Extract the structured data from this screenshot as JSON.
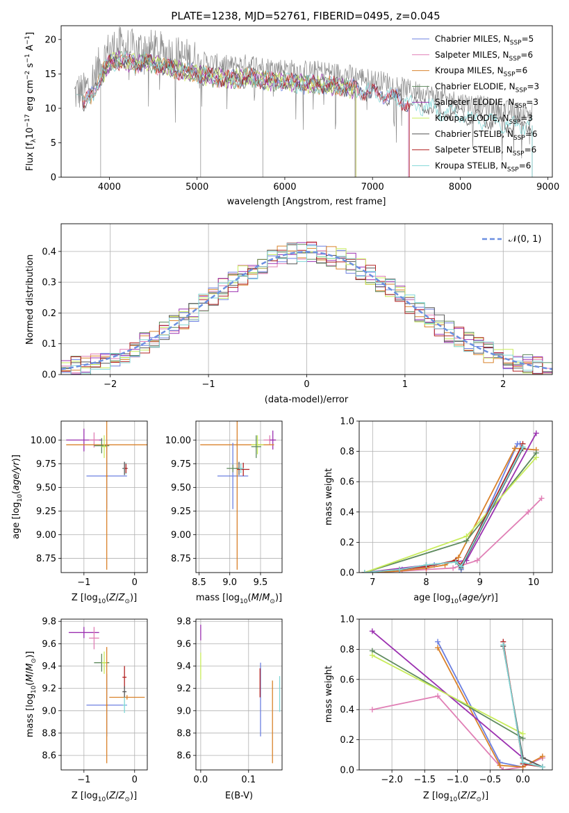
{
  "colors": {
    "chabrier_miles": "#6b7fe0",
    "salpeter_miles": "#e07fb5",
    "kroupa_miles": "#d9822b",
    "chabrier_elodie": "#5e8a5e",
    "salpeter_elodie": "#9b30b0",
    "kroupa_elodie": "#c8ec5a",
    "chabrier_stelib": "#555555",
    "salpeter_stelib": "#b22222",
    "kroupa_stelib": "#7fd6d6",
    "normal": "#6b8fe0",
    "grid": "#b0b0b0"
  },
  "chart_data": [
    {
      "id": "spectrum",
      "type": "line",
      "title": "PLATE=1238, MJD=52761, FIBERID=0495, z=0.045",
      "xlabel": "wavelength [Angstrom, rest frame]",
      "ylabel": "Flux [f_λ10^-17 erg cm^-2 s^-1 A^-1]",
      "xlim": [
        3450,
        9050
      ],
      "ylim": [
        0,
        22
      ],
      "xticks": [
        4000,
        5000,
        6000,
        7000,
        8000,
        9000
      ],
      "yticks": [
        0,
        5,
        10,
        15,
        20
      ],
      "grid": false,
      "legend_position": "top-right",
      "data_envelope": {
        "x": [
          3600,
          3650,
          3700,
          3800,
          3900,
          4000,
          4100,
          4200,
          4300,
          4400,
          4500,
          4600,
          4800,
          5000,
          5200,
          5400,
          5600,
          5800,
          6000,
          6200,
          6400,
          6600,
          6800,
          7000,
          7200,
          7400,
          7600,
          7800,
          8000,
          8200,
          8400,
          8600,
          8800
        ],
        "y": [
          12.0,
          12.5,
          12.2,
          14.0,
          16.5,
          18.5,
          19.0,
          18.8,
          18.5,
          18.8,
          18.5,
          18.2,
          17.5,
          17.0,
          16.5,
          16.2,
          16.5,
          16.0,
          15.8,
          15.5,
          15.5,
          15.2,
          14.8,
          14.2,
          13.8,
          12.8,
          12.2,
          11.5,
          11.0,
          10.5,
          10.0,
          9.6,
          9.5
        ]
      },
      "legend": [
        {
          "label": "Chabrier MILES, N",
          "sub": "SSP",
          "eq": "=5",
          "color_key": "chabrier_miles"
        },
        {
          "label": "Salpeter MILES, N",
          "sub": "SSP",
          "eq": "=6",
          "color_key": "salpeter_miles"
        },
        {
          "label": "Kroupa MILES, N",
          "sub": "SSP",
          "eq": "=6",
          "color_key": "kroupa_miles"
        },
        {
          "label": "Chabrier ELODIE, N",
          "sub": "SSP",
          "eq": "=3",
          "color_key": "chabrier_elodie"
        },
        {
          "label": "Salpeter ELODIE, N",
          "sub": "SSP",
          "eq": "=3",
          "color_key": "salpeter_elodie"
        },
        {
          "label": "Kroupa ELODIE, N",
          "sub": "SSP",
          "eq": "=3",
          "color_key": "kroupa_elodie"
        },
        {
          "label": "Chabrier STELIB, N",
          "sub": "SSP",
          "eq": "=6",
          "color_key": "chabrier_stelib"
        },
        {
          "label": "Salpeter STELIB, N",
          "sub": "SSP",
          "eq": "=6",
          "color_key": "salpeter_stelib"
        },
        {
          "label": "Kroupa STELIB, N",
          "sub": "SSP",
          "eq": "=6",
          "color_key": "kroupa_stelib"
        }
      ]
    },
    {
      "id": "residuals",
      "type": "histogram",
      "title": "",
      "xlabel": "(data-model)/error",
      "ylabel": "Normed distribution",
      "xlim": [
        -2.5,
        2.5
      ],
      "ylim": [
        0,
        0.49
      ],
      "xticks": [
        -2,
        -1,
        0,
        1,
        2
      ],
      "yticks": [
        0.0,
        0.1,
        0.2,
        0.3,
        0.4
      ],
      "grid": true,
      "bin_width": 0.1,
      "legend": [
        {
          "label": "N(0, 1)",
          "style": "dashed",
          "color_key": "normal"
        }
      ],
      "legend_position": "top-right"
    },
    {
      "id": "age_vs_Z",
      "type": "errorbar",
      "xlabel": "Z [log10(Z/Z⊙)]",
      "ylabel": "age  [log10(age/yr)]",
      "xlim": [
        -1.45,
        0.25
      ],
      "ylim": [
        8.6,
        10.2
      ],
      "xticks": [
        -1,
        0
      ],
      "yticks": [
        8.75,
        9.0,
        9.25,
        9.5,
        9.75,
        10.0
      ],
      "grid": true,
      "points": [
        {
          "c": "salpeter_elodie",
          "x": -1.0,
          "xe": 0.35,
          "y": 10.0,
          "ye": 0.12
        },
        {
          "c": "salpeter_miles",
          "x": -0.8,
          "xe": 0.1,
          "y": 10.0,
          "ye": 0.08
        },
        {
          "c": "kroupa_miles",
          "x": -0.55,
          "xe": 0.8,
          "y": 9.95,
          "ye": 0.05
        },
        {
          "c": "chabrier_elodie",
          "x": -0.65,
          "xe": 0.15,
          "y": 9.94,
          "ye": 0.08
        },
        {
          "c": "kroupa_elodie",
          "x": -0.6,
          "xe": 0.05,
          "y": 9.93,
          "ye": 0.12
        },
        {
          "c": "chabrier_miles",
          "x": -0.55,
          "xe": 0.4,
          "y": 9.62,
          "ye": 0.35
        },
        {
          "c": "kroupa_miles",
          "x": -0.55,
          "xe": 0.02,
          "y": 9.62,
          "ye": 0.99
        },
        {
          "c": "chabrier_stelib",
          "x": -0.2,
          "xe": 0.04,
          "y": 9.7,
          "ye": 0.07
        },
        {
          "c": "kroupa_stelib",
          "x": -0.17,
          "xe": 0.04,
          "y": 9.7,
          "ye": 0.06
        },
        {
          "c": "salpeter_stelib",
          "x": -0.17,
          "xe": 0.03,
          "y": 9.7,
          "ye": 0.05
        }
      ]
    },
    {
      "id": "age_vs_mass",
      "type": "errorbar",
      "xlabel": "mass [log10(M/M⊙)]",
      "ylabel": "",
      "xlim": [
        8.45,
        9.85
      ],
      "ylim": [
        8.6,
        10.2
      ],
      "xticks": [
        8.5,
        9.0,
        9.5
      ],
      "yticks": [
        8.75,
        9.0,
        9.25,
        9.5,
        9.75,
        10.0
      ],
      "grid": true,
      "points": [
        {
          "c": "salpeter_miles",
          "x": 9.65,
          "xe": 0.1,
          "y": 10.0,
          "ye": 0.05
        },
        {
          "c": "salpeter_elodie",
          "x": 9.7,
          "xe": 0.05,
          "y": 10.0,
          "ye": 0.1
        },
        {
          "c": "kroupa_miles",
          "x": 9.12,
          "xe": 0.6,
          "y": 9.95,
          "ye": 0.02
        },
        {
          "c": "kroupa_elodie",
          "x": 9.45,
          "xe": 0.1,
          "y": 9.95,
          "ye": 0.1
        },
        {
          "c": "chabrier_elodie",
          "x": 9.43,
          "xe": 0.08,
          "y": 9.93,
          "ye": 0.12
        },
        {
          "c": "chabrier_miles",
          "x": 9.05,
          "xe": 0.25,
          "y": 9.62,
          "ye": 0.35
        },
        {
          "c": "kroupa_miles",
          "x": 9.12,
          "xe": 0.01,
          "y": 9.62,
          "ye": 0.99
        },
        {
          "c": "chabrier_stelib",
          "x": 9.15,
          "xe": 0.05,
          "y": 9.7,
          "ye": 0.07
        },
        {
          "c": "salpeter_stelib",
          "x": 9.22,
          "xe": 0.1,
          "y": 9.69,
          "ye": 0.07
        },
        {
          "c": "kroupa_stelib",
          "x": 9.18,
          "xe": 0.05,
          "y": 9.7,
          "ye": 0.05
        },
        {
          "c": "chabrier_elodie",
          "x": 9.05,
          "xe": 0.1,
          "y": 9.7,
          "ye": 0.04
        }
      ]
    },
    {
      "id": "mass_weight_vs_age",
      "type": "line",
      "xlabel": "age  [log10(age/yr)]",
      "ylabel": "mass weight",
      "xlim": [
        6.75,
        10.35
      ],
      "ylim": [
        0,
        1.0
      ],
      "xticks": [
        7,
        8,
        9,
        10
      ],
      "yticks": [
        0.0,
        0.2,
        0.4,
        0.6,
        0.8,
        1.0
      ],
      "grid": true,
      "series": [
        {
          "c": "chabrier_miles",
          "x": [
            6.85,
            7.55,
            8.15,
            8.55,
            8.65,
            9.7,
            9.75
          ],
          "y": [
            0.0,
            0.02,
            0.05,
            0.08,
            0.02,
            0.85,
            0.85
          ]
        },
        {
          "c": "salpeter_miles",
          "x": [
            6.85,
            7.55,
            8.0,
            8.5,
            8.95,
            9.9,
            10.15
          ],
          "y": [
            0.0,
            0.01,
            0.02,
            0.03,
            0.08,
            0.4,
            0.49
          ]
        },
        {
          "c": "kroupa_miles",
          "x": [
            6.85,
            7.5,
            8.0,
            8.35,
            8.6,
            9.65,
            10.05
          ],
          "y": [
            0.0,
            0.01,
            0.03,
            0.05,
            0.1,
            0.82,
            0.81
          ]
        },
        {
          "c": "chabrier_elodie",
          "x": [
            6.85,
            8.75,
            10.05
          ],
          "y": [
            0.0,
            0.21,
            0.79
          ]
        },
        {
          "c": "salpeter_elodie",
          "x": [
            6.85,
            8.75,
            10.05
          ],
          "y": [
            0.0,
            0.08,
            0.92
          ]
        },
        {
          "c": "kroupa_elodie",
          "x": [
            6.85,
            8.75,
            10.05
          ],
          "y": [
            0.0,
            0.24,
            0.76
          ]
        },
        {
          "c": "chabrier_stelib",
          "x": [
            6.85,
            7.5,
            8.0,
            8.55,
            8.65,
            9.8
          ],
          "y": [
            0.0,
            0.02,
            0.05,
            0.07,
            0.03,
            0.82
          ]
        },
        {
          "c": "salpeter_stelib",
          "x": [
            6.85,
            7.5,
            8.0,
            8.55,
            8.65,
            9.8
          ],
          "y": [
            0.0,
            0.02,
            0.04,
            0.08,
            0.05,
            0.85
          ]
        },
        {
          "c": "kroupa_stelib",
          "x": [
            6.85,
            7.5,
            8.0,
            8.55,
            8.65,
            9.8
          ],
          "y": [
            0.0,
            0.02,
            0.05,
            0.07,
            0.04,
            0.83
          ]
        }
      ]
    },
    {
      "id": "mass_vs_Z",
      "type": "errorbar",
      "xlabel": "Z [log10(Z/Z⊙)]",
      "ylabel": "mass [log10(M/M⊙)]",
      "xlim": [
        -1.45,
        0.25
      ],
      "ylim": [
        8.47,
        9.82
      ],
      "xticks": [
        -1,
        0
      ],
      "yticks": [
        8.6,
        8.8,
        9.0,
        9.2,
        9.4,
        9.6,
        9.8
      ],
      "grid": true,
      "points": [
        {
          "c": "salpeter_elodie",
          "x": -1.0,
          "xe": 0.3,
          "y": 9.7,
          "ye": 0.05
        },
        {
          "c": "salpeter_miles",
          "x": -0.8,
          "xe": 0.1,
          "y": 9.65,
          "ye": 0.1
        },
        {
          "c": "chabrier_elodie",
          "x": -0.65,
          "xe": 0.15,
          "y": 9.43,
          "ye": 0.08
        },
        {
          "c": "kroupa_elodie",
          "x": -0.6,
          "xe": 0.05,
          "y": 9.43,
          "ye": 0.1
        },
        {
          "c": "chabrier_miles",
          "x": -0.55,
          "xe": 0.4,
          "y": 9.05,
          "ye": 0.28
        },
        {
          "c": "kroupa_miles",
          "x": -0.55,
          "xe": 0.02,
          "y": 9.05,
          "ye": 0.52
        },
        {
          "c": "kroupa_miles",
          "x": -0.15,
          "xe": 0.35,
          "y": 9.12,
          "ye": 0.02
        },
        {
          "c": "salpeter_stelib",
          "x": -0.2,
          "xe": 0.04,
          "y": 9.3,
          "ye": 0.1
        },
        {
          "c": "chabrier_stelib",
          "x": -0.2,
          "xe": 0.04,
          "y": 9.17,
          "ye": 0.05
        },
        {
          "c": "kroupa_stelib",
          "x": -0.2,
          "xe": 0.03,
          "y": 9.05,
          "ye": 0.07
        }
      ]
    },
    {
      "id": "mass_vs_ebv",
      "type": "errorbar",
      "xlabel": "E(B-V)",
      "ylabel": "",
      "xlim": [
        -0.01,
        0.17
      ],
      "ylim": [
        8.47,
        9.82
      ],
      "xticks": [
        0.0,
        0.1
      ],
      "yticks": [
        8.6,
        8.8,
        9.0,
        9.2,
        9.4,
        9.6,
        9.8
      ],
      "grid": true,
      "points": [
        {
          "c": "salpeter_elodie",
          "x": 0.0,
          "xe": 0.0,
          "y": 9.7,
          "ye": 0.07
        },
        {
          "c": "kroupa_elodie",
          "x": 0.0,
          "xe": 0.0,
          "y": 9.4,
          "ye": 0.12
        },
        {
          "c": "chabrier_miles",
          "x": 0.125,
          "xe": 0.0,
          "y": 9.1,
          "ye": 0.33
        },
        {
          "c": "salpeter_stelib",
          "x": 0.124,
          "xe": 0.0,
          "y": 9.25,
          "ye": 0.13
        },
        {
          "c": "kroupa_miles",
          "x": 0.15,
          "xe": 0.0,
          "y": 8.9,
          "ye": 0.37
        },
        {
          "c": "kroupa_stelib",
          "x": 0.165,
          "xe": 0.0,
          "y": 9.15,
          "ye": 0.16
        }
      ]
    },
    {
      "id": "mass_weight_vs_Z",
      "type": "line",
      "xlabel": "Z [log10(Z/Z⊙)]",
      "ylabel": "mass weight",
      "xlim": [
        -2.5,
        0.45
      ],
      "ylim": [
        0,
        1.0
      ],
      "xticks": [
        -2.0,
        -1.5,
        -1.0,
        -0.5,
        0.0
      ],
      "yticks": [
        0.0,
        0.2,
        0.4,
        0.6,
        0.8,
        1.0
      ],
      "grid": true,
      "series": [
        {
          "c": "chabrier_miles",
          "x": [
            -1.3,
            -0.35,
            0.0,
            0.3
          ],
          "y": [
            0.85,
            0.05,
            0.02,
            0.08
          ]
        },
        {
          "c": "salpeter_miles",
          "x": [
            -2.3,
            -1.3,
            -0.3,
            0.0,
            0.3
          ],
          "y": [
            0.4,
            0.49,
            0.0,
            0.02,
            0.08
          ]
        },
        {
          "c": "kroupa_miles",
          "x": [
            -1.3,
            -0.35,
            0.0,
            0.3
          ],
          "y": [
            0.81,
            0.03,
            0.02,
            0.09
          ]
        },
        {
          "c": "chabrier_elodie",
          "x": [
            -2.3,
            0.0
          ],
          "y": [
            0.79,
            0.21
          ]
        },
        {
          "c": "salpeter_elodie",
          "x": [
            -2.3,
            0.0
          ],
          "y": [
            0.92,
            0.08
          ]
        },
        {
          "c": "kroupa_elodie",
          "x": [
            -2.3,
            0.0
          ],
          "y": [
            0.76,
            0.24
          ]
        },
        {
          "c": "chabrier_stelib",
          "x": [
            -0.3,
            0.0,
            0.3
          ],
          "y": [
            0.82,
            0.08,
            0.02
          ]
        },
        {
          "c": "salpeter_stelib",
          "x": [
            -0.3,
            0.0,
            0.3
          ],
          "y": [
            0.85,
            0.04,
            0.02
          ]
        },
        {
          "c": "kroupa_stelib",
          "x": [
            -0.3,
            0.0,
            0.3
          ],
          "y": [
            0.83,
            0.05,
            0.02
          ]
        }
      ]
    }
  ]
}
